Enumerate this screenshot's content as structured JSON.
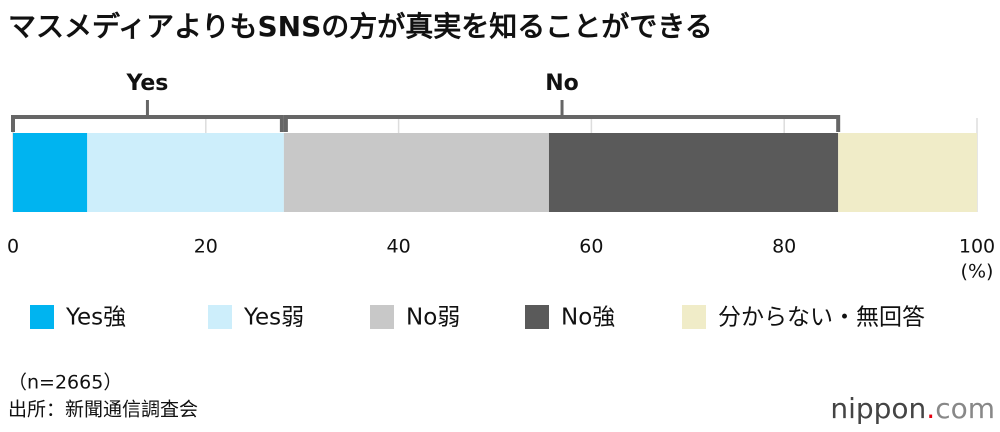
{
  "chart_data": {
    "type": "stacked_bar_horizontal",
    "title": "マスメディアよりもSNSの方が真実を知ることができる",
    "brackets": [
      "Yes",
      "No"
    ],
    "series": [
      {
        "name": "Yes強",
        "color": "#00b4f0",
        "values": [
          7.7
        ]
      },
      {
        "name": "Yes弱",
        "color": "#cdeefb",
        "values": [
          20.4
        ]
      },
      {
        "name": "No弱",
        "color": "#c8c8c8",
        "values": [
          27.5
        ]
      },
      {
        "name": "No強",
        "color": "#5a5a5a",
        "values": [
          30.0
        ]
      },
      {
        "name": "分からない・無回答",
        "color": "#f0ecc8",
        "values": [
          14.4
        ]
      }
    ],
    "xlim": [
      0,
      100
    ],
    "xticks": [
      0,
      20,
      40,
      60,
      80,
      100
    ],
    "x_unit": "(%)",
    "grid": true,
    "note": "（n=2665）",
    "source": "出所：新聞通信調査会",
    "logo": [
      "nippon",
      ".",
      "com"
    ]
  }
}
